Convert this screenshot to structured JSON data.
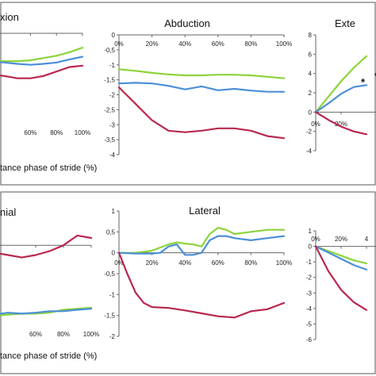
{
  "chart_data": [
    {
      "type": "line",
      "title": "xion",
      "x": [
        0,
        10,
        20,
        30,
        40,
        50,
        60,
        70,
        80,
        90,
        100
      ],
      "xticks": [
        "60%",
        "80%",
        "100%"
      ],
      "yticks": [],
      "xlabel": "tance phase of stride (%)",
      "series": [
        {
          "color": "#8cd43a",
          "values": [
            -0.5,
            -0.55,
            -0.6,
            -0.62,
            -0.62,
            -0.62,
            -0.6,
            -0.55,
            -0.5,
            -0.42,
            -0.32
          ]
        },
        {
          "color": "#4a8fd6",
          "values": [
            -0.5,
            -0.55,
            -0.6,
            -0.63,
            -0.65,
            -0.68,
            -0.7,
            -0.68,
            -0.65,
            -0.58,
            -0.52
          ]
        },
        {
          "color": "#b8284e",
          "values": [
            -0.8,
            -0.85,
            -0.9,
            -0.92,
            -0.95,
            -1.0,
            -1.0,
            -0.95,
            -0.85,
            -0.75,
            -0.72
          ]
        }
      ]
    },
    {
      "type": "line",
      "title": "Abduction",
      "x": [
        0,
        10,
        20,
        30,
        40,
        50,
        60,
        70,
        80,
        90,
        100
      ],
      "xticks": [
        "0%",
        "20%",
        "40%",
        "60%",
        "80%",
        "100%"
      ],
      "yticks": [
        "0",
        "-0,5",
        "-1",
        "-1,5",
        "-2",
        "-2,5",
        "-3",
        "-3,5",
        "-4"
      ],
      "ylim": [
        -4,
        0
      ],
      "series": [
        {
          "color": "#8cd43a",
          "values": [
            -1.15,
            -1.2,
            -1.27,
            -1.32,
            -1.35,
            -1.35,
            -1.33,
            -1.33,
            -1.35,
            -1.4,
            -1.45
          ]
        },
        {
          "color": "#4a8fd6",
          "values": [
            -1.62,
            -1.6,
            -1.62,
            -1.7,
            -1.82,
            -1.72,
            -1.85,
            -1.8,
            -1.86,
            -1.9,
            -1.9
          ]
        },
        {
          "color": "#b8284e",
          "values": [
            -1.75,
            -2.3,
            -2.85,
            -3.2,
            -3.25,
            -3.2,
            -3.12,
            -3.12,
            -3.2,
            -3.38,
            -3.45
          ]
        }
      ]
    },
    {
      "type": "line",
      "title": "Exte",
      "x": [
        0,
        10,
        20,
        30,
        40
      ],
      "xticks": [
        "0%",
        "20%"
      ],
      "yticks": [
        "8",
        "6",
        "4",
        "2",
        "0",
        "-2",
        "-4"
      ],
      "ylim": [
        -4,
        8
      ],
      "annotations": [
        "*",
        "*"
      ],
      "series": [
        {
          "color": "#8cd43a",
          "values": [
            0,
            1.6,
            3.2,
            4.6,
            5.8
          ]
        },
        {
          "color": "#4a8fd6",
          "values": [
            0,
            0.9,
            1.9,
            2.6,
            2.8
          ]
        },
        {
          "color": "#b8284e",
          "values": [
            0,
            -0.8,
            -1.5,
            -2.0,
            -2.3
          ]
        }
      ]
    },
    {
      "type": "line",
      "title": "nial",
      "x": [
        0,
        10,
        20,
        30,
        40,
        50,
        60,
        70,
        80,
        90,
        100
      ],
      "xticks": [
        "60%",
        "80%",
        "100%"
      ],
      "yticks": [],
      "xlabel": "tance phase of stride (%)",
      "series": [
        {
          "color": "#8cd43a",
          "values": [
            -1.5,
            -1.5,
            -1.48,
            -1.45,
            -1.42,
            -1.4,
            -1.4,
            -1.38,
            -1.32,
            -1.3,
            -1.28
          ]
        },
        {
          "color": "#4a8fd6",
          "values": [
            -1.55,
            -1.55,
            -1.52,
            -1.42,
            -1.38,
            -1.4,
            -1.38,
            -1.35,
            -1.35,
            -1.32,
            -1.3
          ]
        },
        {
          "color": "#b8284e",
          "values": [
            -0.05,
            -0.08,
            -0.12,
            -0.15,
            -0.2,
            -0.25,
            -0.2,
            -0.12,
            0.0,
            0.2,
            0.15
          ]
        }
      ]
    },
    {
      "type": "line",
      "title": "Lateral",
      "x": [
        0,
        10,
        20,
        25,
        30,
        35,
        40,
        45,
        50,
        55,
        60,
        65,
        70,
        80,
        90,
        100
      ],
      "xticks": [
        "0%",
        "20%",
        "40%",
        "60%",
        "80%",
        "100%"
      ],
      "yticks": [
        "1",
        "0,5",
        "0",
        "-0,5",
        "-1",
        "-1,5",
        "-2"
      ],
      "ylim": [
        -2,
        1
      ],
      "series": [
        {
          "color": "#8cd43a",
          "x": [
            0,
            10,
            20,
            30,
            35,
            40,
            45,
            50,
            55,
            60,
            65,
            70,
            80,
            90,
            100
          ],
          "values": [
            0,
            0,
            0.05,
            0.2,
            0.25,
            0.22,
            0.2,
            0.15,
            0.45,
            0.6,
            0.55,
            0.45,
            0.5,
            0.55,
            0.55
          ]
        },
        {
          "color": "#4a8fd6",
          "x": [
            0,
            10,
            20,
            25,
            30,
            35,
            40,
            45,
            50,
            55,
            60,
            65,
            70,
            80,
            90,
            100
          ],
          "values": [
            0,
            -0.02,
            -0.02,
            0.0,
            0.15,
            0.2,
            -0.05,
            -0.05,
            0.0,
            0.3,
            0.4,
            0.4,
            0.35,
            0.3,
            0.35,
            0.4
          ]
        },
        {
          "color": "#b8284e",
          "x": [
            0,
            5,
            10,
            15,
            20,
            30,
            40,
            50,
            60,
            70,
            80,
            90,
            100
          ],
          "values": [
            0,
            -0.5,
            -0.95,
            -1.2,
            -1.3,
            -1.32,
            -1.38,
            -1.45,
            -1.52,
            -1.55,
            -1.4,
            -1.35,
            -1.2
          ]
        }
      ]
    },
    {
      "type": "line",
      "title": "",
      "x": [
        0,
        10,
        20,
        30,
        40
      ],
      "xticks": [
        "0%",
        "20%",
        "4"
      ],
      "yticks": [
        "1",
        "0",
        "-1",
        "-2",
        "-3",
        "-4",
        "-5",
        "-6"
      ],
      "ylim": [
        -6,
        1
      ],
      "series": [
        {
          "color": "#8cd43a",
          "values": [
            0,
            -0.3,
            -0.6,
            -0.9,
            -1.1
          ]
        },
        {
          "color": "#4a8fd6",
          "values": [
            0,
            -0.4,
            -0.8,
            -1.2,
            -1.5
          ]
        },
        {
          "color": "#b8284e",
          "values": [
            0,
            -1.6,
            -2.8,
            -3.6,
            -4.1
          ]
        }
      ]
    }
  ]
}
